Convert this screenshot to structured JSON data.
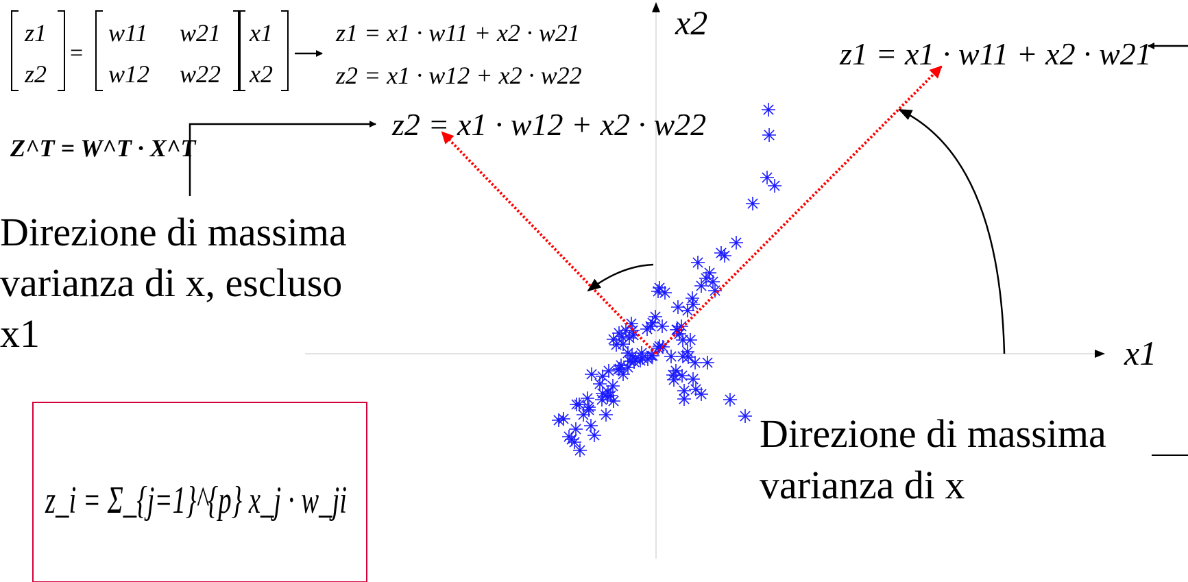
{
  "matrix_equation": {
    "z_vector": [
      "z1",
      "z2"
    ],
    "w_matrix": [
      [
        "w11",
        "w21"
      ],
      [
        "w12",
        "w22"
      ]
    ],
    "x_vector": [
      "x1",
      "x2"
    ],
    "result_lines": [
      "z1 = x1 · w11 + x2 · w21",
      "z2 = x1 · w12 + x2 · w22"
    ]
  },
  "transpose_formula": "Z^T = W^T · X^T",
  "second_direction_label": {
    "lines": [
      "Direzione di massima",
      "varianza di x, escluso",
      "x1"
    ]
  },
  "first_direction_label": {
    "lines": [
      "Direzione di massima",
      "varianza di x"
    ]
  },
  "summation_formula": "z_i = Σ_{j=1}^{p} x_j · w_ji",
  "axis_labels": {
    "x1": "x1",
    "x2": "x2"
  },
  "z1_axis_equation": "z1 = x1 · w11 + x2 · w21",
  "z2_axis_equation": "z2 = x1 · w12 + x2 · w22",
  "colors": {
    "points": "#1a1aff",
    "component_axes": "#ff0000",
    "coordinate_axes": "#d9d9d9",
    "formula_box_border": "#d4003a"
  },
  "chart_data": {
    "type": "scatter",
    "x": [
      -1.11,
      -1.17,
      -1.19,
      -1.23,
      -1.27,
      -1.35,
      -1.42,
      -0.9,
      -0.95,
      -0.98,
      -0.98,
      -1.0,
      -1.06,
      -0.73,
      -1.16,
      -1.12,
      -0.79,
      -0.78,
      -0.62,
      -0.7,
      -0.71,
      -0.66,
      -0.63,
      -0.82,
      -0.78,
      -0.94,
      -0.69,
      -0.51,
      -0.55,
      -0.53,
      -0.48,
      -0.41,
      -0.3,
      -0.38,
      -0.35,
      -0.41,
      -0.21,
      -0.07,
      -0.05,
      -0.12,
      -0.2,
      -0.23,
      -0.32,
      0.03,
      0.1,
      0.05,
      0.22,
      0.25,
      -0.48,
      -0.58,
      -0.62,
      -0.54,
      -0.39,
      -0.33,
      -0.34,
      -0.44,
      -0.36,
      -0.5,
      -0.08,
      -0.05,
      -0.01,
      -0.13,
      0.09,
      0.3,
      0.31,
      0.37,
      0.54,
      0.03,
      0.05,
      0.13,
      0.32,
      0.46,
      0.53,
      0.66,
      0.73,
      0.86,
      0.83,
      0.61,
      0.78,
      0.95,
      1.0,
      1.17,
      1.41,
      1.62,
      1.73,
      1.65,
      1.64,
      0.34,
      0.39,
      0.5,
      0.46,
      0.39,
      0.47,
      0.57,
      0.75,
      0.54,
      0.66,
      1.08,
      1.3,
      0.41,
      0.41,
      0.58,
      0.38,
      0.29,
      0.26
    ],
    "y": [
      -1.41,
      -1.1,
      -1.29,
      -1.25,
      -1.21,
      -0.95,
      -0.97,
      -1.19,
      -1.05,
      -0.78,
      -0.82,
      -0.65,
      -0.89,
      -0.89,
      -0.74,
      -0.74,
      -0.67,
      -0.58,
      -0.69,
      -0.56,
      -0.63,
      -0.61,
      -0.47,
      -0.44,
      -0.33,
      -0.3,
      -0.25,
      -0.17,
      -0.23,
      -0.22,
      -0.3,
      -0.2,
      -0.08,
      -0.11,
      -0.03,
      0.01,
      0.01,
      -0.03,
      -0.03,
      -0.08,
      -0.06,
      -0.1,
      -0.12,
      0.08,
      0.1,
      0.11,
      -0.04,
      -0.31,
      0.14,
      0.13,
      0.21,
      0.3,
      0.23,
      0.27,
      0.34,
      0.34,
      0.44,
      0.25,
      0.4,
      0.45,
      0.54,
      0.36,
      0.4,
      0.35,
      0.35,
      0.4,
      0.72,
      0.91,
      0.96,
      0.89,
      0.68,
      0.63,
      0.81,
      0.99,
      1.1,
      0.92,
      1.05,
      1.33,
      1.18,
      1.47,
      1.43,
      1.62,
      2.19,
      2.57,
      2.45,
      3.19,
      3.56,
      0.29,
      0.2,
      0.2,
      0.03,
      -0.04,
      -0.05,
      -0.13,
      -0.13,
      -0.37,
      -0.59,
      -0.67,
      -0.91,
      -0.66,
      -0.54,
      -0.52,
      -0.32,
      -0.25,
      -0.38
    ],
    "series": [
      {
        "values": []
      }
    ],
    "xlabel": "x1",
    "ylabel": "x2",
    "grid": false
  }
}
